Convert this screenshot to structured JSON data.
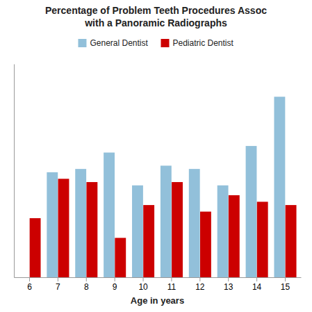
{
  "chart_data": {
    "type": "bar",
    "title": "Percentage of Problem Teeth Procedures Assoc\nwith a Panoramic Radiographs",
    "xlabel": "Age in years",
    "categories": [
      "6",
      "7",
      "8",
      "9",
      "10",
      "11",
      "12",
      "13",
      "14",
      "15"
    ],
    "series": [
      {
        "name": "General Dentist",
        "color": "#92C0DA",
        "values": [
          0,
          32,
          33,
          38,
          28,
          34,
          33,
          28,
          40,
          55
        ]
      },
      {
        "name": "Pediatric Dentist",
        "color": "#CC0000",
        "values": [
          18,
          30,
          29,
          12,
          22,
          29,
          20,
          25,
          23,
          22
        ]
      }
    ],
    "ylim": [
      0,
      65
    ],
    "yticks": [],
    "grid": false,
    "legend": "top",
    "tick_labels": "x"
  }
}
